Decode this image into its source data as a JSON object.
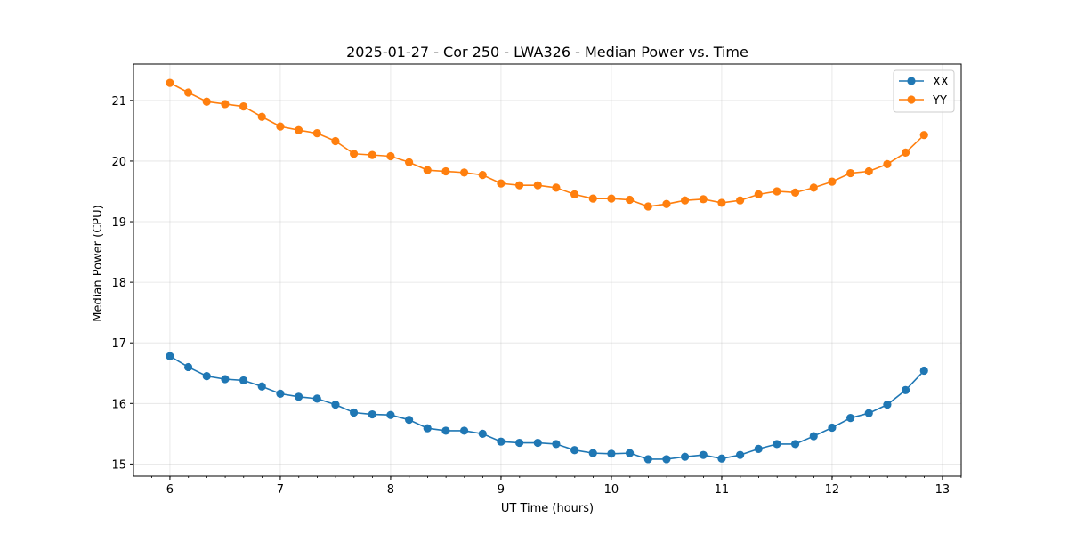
{
  "chart_data": {
    "type": "line",
    "title": "2025-01-27 - Cor 250 - LWA326 - Median Power vs. Time",
    "xlabel": "UT Time (hours)",
    "ylabel": "Median Power (CPU)",
    "xlim": [
      5.67,
      13.17
    ],
    "ylim": [
      14.8,
      21.6
    ],
    "xticks": [
      6,
      7,
      8,
      9,
      10,
      11,
      12,
      13
    ],
    "yticks": [
      15,
      16,
      17,
      18,
      19,
      20,
      21
    ],
    "x_minor_step": 0.1667,
    "grid": true,
    "legend": "top-right",
    "x": [
      6.0,
      6.1667,
      6.3333,
      6.5,
      6.6667,
      6.8333,
      7.0,
      7.1667,
      7.3333,
      7.5,
      7.6667,
      7.8333,
      8.0,
      8.1667,
      8.3333,
      8.5,
      8.6667,
      8.8333,
      9.0,
      9.1667,
      9.3333,
      9.5,
      9.6667,
      9.8333,
      10.0,
      10.1667,
      10.3333,
      10.5,
      10.6667,
      10.8333,
      11.0,
      11.1667,
      11.3333,
      11.5,
      11.6667,
      11.8333,
      12.0,
      12.1667,
      12.3333,
      12.5,
      12.6667,
      12.8333
    ],
    "series": [
      {
        "name": "XX",
        "color": "#1f77b4",
        "values": [
          16.78,
          16.6,
          16.45,
          16.4,
          16.38,
          16.28,
          16.16,
          16.11,
          16.08,
          15.98,
          15.85,
          15.82,
          15.81,
          15.73,
          15.59,
          15.55,
          15.55,
          15.5,
          15.37,
          15.35,
          15.35,
          15.33,
          15.23,
          15.18,
          15.17,
          15.18,
          15.08,
          15.08,
          15.12,
          15.15,
          15.09,
          15.15,
          15.25,
          15.33,
          15.33,
          15.46,
          15.6,
          15.76,
          15.84,
          15.98,
          16.22,
          16.54
        ]
      },
      {
        "name": "YY",
        "color": "#ff7f0e",
        "values": [
          21.29,
          21.13,
          20.98,
          20.94,
          20.9,
          20.73,
          20.57,
          20.51,
          20.46,
          20.33,
          20.12,
          20.1,
          20.08,
          19.98,
          19.85,
          19.83,
          19.81,
          19.77,
          19.63,
          19.6,
          19.6,
          19.56,
          19.45,
          19.38,
          19.38,
          19.36,
          19.25,
          19.29,
          19.35,
          19.37,
          19.31,
          19.35,
          19.45,
          19.5,
          19.48,
          19.56,
          19.66,
          19.8,
          19.83,
          19.95,
          20.14,
          20.43
        ]
      }
    ]
  }
}
